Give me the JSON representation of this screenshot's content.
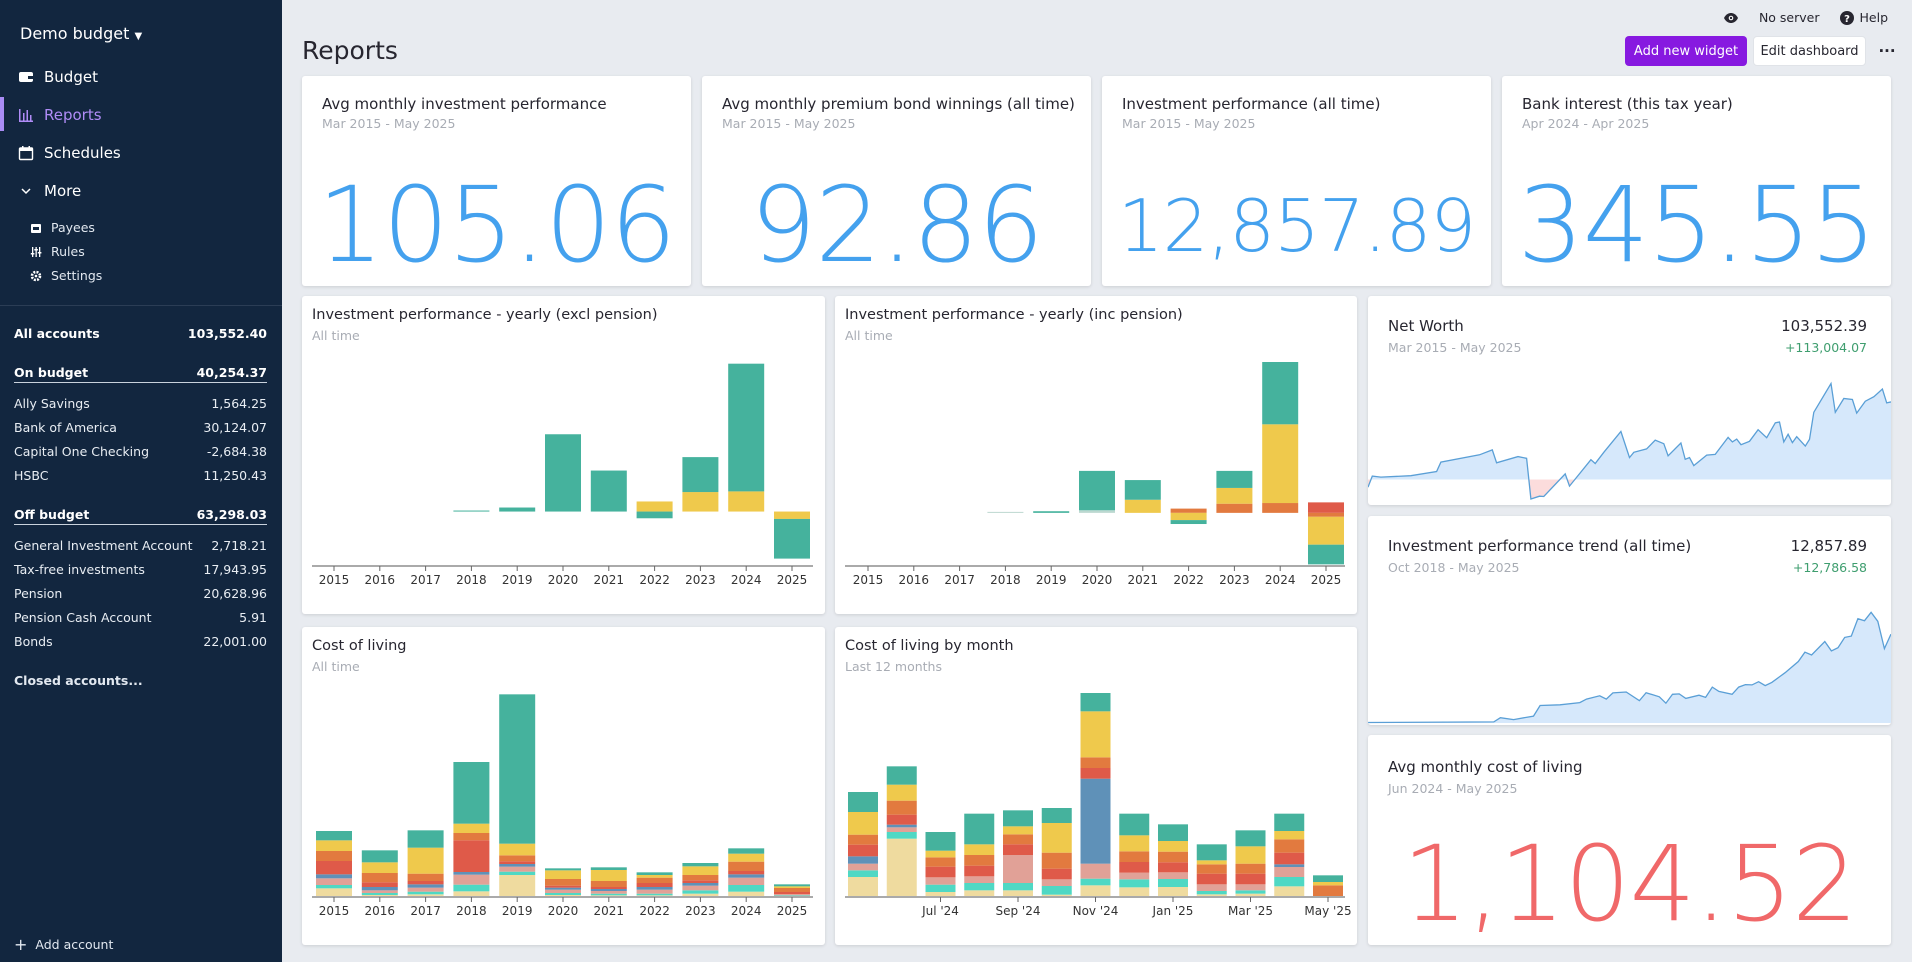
{
  "sidebar": {
    "budget_name": "Demo budget",
    "nav": [
      {
        "label": "Budget",
        "icon": "wallet-icon"
      },
      {
        "label": "Reports",
        "icon": "bar-chart-icon",
        "active": true
      },
      {
        "label": "Schedules",
        "icon": "calendar-icon"
      },
      {
        "label": "More",
        "icon": "chevron-down-icon"
      }
    ],
    "sub": [
      {
        "label": "Payees",
        "icon": "store-icon"
      },
      {
        "label": "Rules",
        "icon": "sliders-icon"
      },
      {
        "label": "Settings",
        "icon": "gear-icon"
      }
    ],
    "all_accounts": {
      "label": "All accounts",
      "value": "103,552.40"
    },
    "on_budget": {
      "label": "On budget",
      "value": "40,254.37",
      "accounts": [
        {
          "name": "Ally Savings",
          "value": "1,564.25"
        },
        {
          "name": "Bank of America",
          "value": "30,124.07"
        },
        {
          "name": "Capital One Checking",
          "value": "-2,684.38"
        },
        {
          "name": "HSBC",
          "value": "11,250.43"
        }
      ]
    },
    "off_budget": {
      "label": "Off budget",
      "value": "63,298.03",
      "accounts": [
        {
          "name": "General Investment Account",
          "value": "2,718.21"
        },
        {
          "name": "Tax-free investments",
          "value": "17,943.95"
        },
        {
          "name": "Pension",
          "value": "20,628.96"
        },
        {
          "name": "Pension Cash Account",
          "value": "5.91"
        },
        {
          "name": "Bonds",
          "value": "22,001.00"
        }
      ]
    },
    "closed": "Closed accounts...",
    "add_account": "Add account"
  },
  "header": {
    "title": "Reports",
    "server": "No server",
    "help": "Help",
    "add_widget": "Add new widget",
    "edit_dashboard": "Edit dashboard",
    "more": "···"
  },
  "colors": {
    "accent": "#8719e0",
    "number_blue": "#44a1ee",
    "number_red": "#f06869",
    "positive": "#3f9e6f",
    "teal": "#45b29d",
    "yellow": "#efc94c",
    "orange": "#e27a3f",
    "red": "#df5a49",
    "blue": "#5f91b8",
    "pink": "#e1a197",
    "mint": "#4fd8c4",
    "beige": "#efdb9f",
    "light": "#bcd8d0"
  },
  "cards": [
    {
      "title": "Avg monthly investment performance",
      "subtitle": "Mar 2015 - May 2025",
      "value": "105.06"
    },
    {
      "title": "Avg monthly premium bond winnings (all time)",
      "subtitle": "Mar 2015 - May 2025",
      "value": "92.86"
    },
    {
      "title": "Investment performance (all time)",
      "subtitle": "Mar 2015 - May 2025",
      "value": "12,857.89"
    },
    {
      "title": "Bank interest (this tax year)",
      "subtitle": "Apr 2024 - Apr 2025",
      "value": "345.55"
    },
    {
      "title": "Avg monthly cost of living",
      "subtitle": "Jun 2024 - May 2025",
      "value": "1,104.52"
    }
  ],
  "net_worth": {
    "title": "Net Worth",
    "subtitle": "Mar 2015 - May 2025",
    "value": "103,552.39",
    "change": "+113,004.07"
  },
  "inv_trend": {
    "title": "Investment performance trend (all time)",
    "subtitle": "Oct 2018 - May 2025",
    "value": "12,857.89",
    "change": "+12,786.58"
  },
  "chart_data": [
    {
      "id": "inv_excl",
      "type": "bar",
      "stacked": true,
      "title": "Investment performance - yearly (excl pension)",
      "subtitle": "All time",
      "categories": [
        "2015",
        "2016",
        "2017",
        "2018",
        "2019",
        "2020",
        "2021",
        "2022",
        "2023",
        "2024",
        "2025"
      ],
      "ylim": [
        -162,
        445
      ],
      "series": [
        {
          "color": "yellow",
          "values": [
            0,
            0,
            0,
            0,
            0,
            0,
            0,
            30,
            58,
            60,
            -22
          ]
        },
        {
          "color": "teal",
          "values": [
            0,
            0,
            0,
            3,
            12,
            230,
            122,
            -20,
            104,
            380,
            -118
          ]
        }
      ]
    },
    {
      "id": "inv_inc",
      "type": "bar",
      "stacked": true,
      "title": "Investment performance - yearly (inc pension)",
      "subtitle": "All time",
      "categories": [
        "2015",
        "2016",
        "2017",
        "2018",
        "2019",
        "2020",
        "2021",
        "2022",
        "2023",
        "2024",
        "2025"
      ],
      "ylim": [
        -162,
        460
      ],
      "series": [
        {
          "color": "red",
          "values": [
            0,
            0,
            0,
            0,
            0,
            0,
            0,
            0,
            0,
            0,
            32
          ]
        },
        {
          "color": "orange",
          "values": [
            0,
            0,
            0,
            0,
            0,
            0,
            0,
            13,
            28,
            30,
            -12
          ]
        },
        {
          "color": "light",
          "values": [
            0,
            0,
            0,
            3,
            0,
            8,
            0,
            0,
            0,
            0,
            0
          ]
        },
        {
          "color": "yellow",
          "values": [
            0,
            0,
            0,
            0,
            0,
            0,
            40,
            -22,
            48,
            240,
            -85
          ]
        },
        {
          "color": "teal",
          "values": [
            0,
            0,
            0,
            0,
            5,
            120,
            60,
            -12,
            52,
            190,
            -60
          ]
        }
      ]
    },
    {
      "id": "col",
      "type": "bar",
      "stacked": true,
      "title": "Cost of living",
      "subtitle": "All time",
      "categories": [
        "2015",
        "2016",
        "2017",
        "2018",
        "2019",
        "2020",
        "2021",
        "2022",
        "2023",
        "2024",
        "2025"
      ],
      "ylim": [
        0,
        612
      ],
      "series": [
        {
          "color": "beige",
          "values": [
            26,
            6,
            8,
            17,
            66,
            6,
            5,
            5,
            10,
            16,
            2
          ]
        },
        {
          "color": "mint",
          "values": [
            10,
            6,
            8,
            20,
            10,
            6,
            5,
            5,
            10,
            20,
            3
          ]
        },
        {
          "color": "pink",
          "values": [
            20,
            8,
            12,
            30,
            15,
            10,
            8,
            12,
            14,
            22,
            4
          ]
        },
        {
          "color": "blue",
          "values": [
            12,
            10,
            10,
            8,
            8,
            6,
            6,
            8,
            8,
            10,
            0
          ]
        },
        {
          "color": "red",
          "values": [
            40,
            14,
            10,
            95,
            8,
            6,
            6,
            12,
            8,
            10,
            6
          ]
        },
        {
          "color": "orange",
          "values": [
            30,
            28,
            22,
            22,
            18,
            20,
            18,
            16,
            16,
            28,
            12
          ]
        },
        {
          "color": "yellow",
          "values": [
            32,
            32,
            78,
            28,
            35,
            26,
            33,
            8,
            26,
            24,
            5
          ]
        },
        {
          "color": "teal",
          "values": [
            28,
            36,
            52,
            185,
            448,
            6,
            8,
            8,
            10,
            16,
            6
          ]
        }
      ]
    },
    {
      "id": "col_month",
      "type": "bar",
      "stacked": true,
      "title": "Cost of living by month",
      "subtitle": "Last 12 months",
      "categories": [
        "",
        "",
        "Jul '24",
        "",
        "Sep '24",
        "",
        "Nov '24",
        "",
        "Jan '25",
        "",
        "Mar '25",
        "",
        "May '25"
      ],
      "ylim": [
        0,
        612
      ],
      "series": [
        {
          "color": "beige",
          "values": [
            60,
            175,
            15,
            20,
            20,
            7,
            35,
            29,
            30,
            8,
            10,
            32,
            0
          ]
        },
        {
          "color": "mint",
          "values": [
            20,
            20,
            22,
            22,
            22,
            26,
            20,
            24,
            24,
            10,
            10,
            28,
            0
          ]
        },
        {
          "color": "pink",
          "values": [
            20,
            14,
            22,
            20,
            84,
            20,
            45,
            20,
            20,
            20,
            18,
            30,
            0
          ]
        },
        {
          "color": "blue",
          "values": [
            22,
            8,
            0,
            0,
            0,
            0,
            255,
            0,
            0,
            0,
            0,
            8,
            0
          ]
        },
        {
          "color": "red",
          "values": [
            35,
            30,
            32,
            32,
            32,
            32,
            32,
            32,
            30,
            32,
            32,
            35,
            0
          ]
        },
        {
          "color": "orange",
          "values": [
            30,
            42,
            28,
            32,
            30,
            48,
            32,
            32,
            32,
            28,
            30,
            40,
            35
          ]
        },
        {
          "color": "yellow",
          "values": [
            68,
            48,
            20,
            32,
            24,
            89,
            138,
            48,
            32,
            12,
            52,
            25,
            10
          ]
        },
        {
          "color": "teal",
          "values": [
            60,
            55,
            56,
            92,
            48,
            45,
            55,
            65,
            50,
            48,
            48,
            52,
            20
          ]
        }
      ]
    },
    {
      "id": "net_worth",
      "type": "area",
      "ylim": [
        -30000,
        130000
      ],
      "x_range": [
        "2015-03",
        "2025-05"
      ],
      "points": [
        [
          "2015-03",
          -10200
        ],
        [
          "2015-04",
          4600
        ],
        [
          "2015-06",
          3200
        ],
        [
          "2016-01",
          5100
        ],
        [
          "2016-07",
          10700
        ],
        [
          "2016-08",
          23200
        ],
        [
          "2017-05",
          32900
        ],
        [
          "2017-08",
          39400
        ],
        [
          "2017-09",
          22300
        ],
        [
          "2018-02",
          30600
        ],
        [
          "2018-04",
          28300
        ],
        [
          "2018-05",
          -26000
        ],
        [
          "2018-07",
          -22300
        ],
        [
          "2018-08",
          -22700
        ],
        [
          "2019-01",
          7400
        ],
        [
          "2019-02",
          -8800
        ],
        [
          "2019-07",
          26400
        ],
        [
          "2019-08",
          21300
        ],
        [
          "2019-10",
          36200
        ],
        [
          "2020-02",
          64000
        ],
        [
          "2020-04",
          29200
        ],
        [
          "2020-05",
          36200
        ],
        [
          "2020-08",
          40800
        ],
        [
          "2020-10",
          52400
        ],
        [
          "2020-12",
          47800
        ],
        [
          "2021-01",
          31600
        ],
        [
          "2021-04",
          48700
        ],
        [
          "2021-05",
          26900
        ],
        [
          "2021-06",
          29200
        ],
        [
          "2021-07",
          18600
        ],
        [
          "2021-10",
          32500
        ],
        [
          "2021-12",
          33400
        ],
        [
          "2022-03",
          56100
        ],
        [
          "2022-04",
          50100
        ],
        [
          "2022-05",
          53800
        ],
        [
          "2022-06",
          46400
        ],
        [
          "2022-08",
          51000
        ],
        [
          "2022-10",
          66400
        ],
        [
          "2022-12",
          55700
        ],
        [
          "2023-02",
          75600
        ],
        [
          "2023-03",
          76600
        ],
        [
          "2023-04",
          50100
        ],
        [
          "2023-05",
          60300
        ],
        [
          "2023-06",
          49200
        ],
        [
          "2023-07",
          57100
        ],
        [
          "2023-09",
          44500
        ],
        [
          "2023-10",
          53400
        ],
        [
          "2023-11",
          89600
        ],
        [
          "2024-03",
          128000
        ],
        [
          "2024-04",
          89600
        ],
        [
          "2024-06",
          108000
        ],
        [
          "2024-08",
          106700
        ],
        [
          "2024-09",
          88600
        ],
        [
          "2024-11",
          104400
        ],
        [
          "2025-01",
          110400
        ],
        [
          "2025-03",
          120600
        ],
        [
          "2025-04",
          102100
        ],
        [
          "2025-05",
          103500
        ]
      ]
    },
    {
      "id": "inv_trend",
      "type": "area",
      "ylim": [
        0,
        16500
      ],
      "x_range": [
        "2018-10",
        "2025-05"
      ],
      "points": [
        [
          "2018-10",
          70
        ],
        [
          "2020-05",
          160
        ],
        [
          "2020-06",
          770
        ],
        [
          "2020-08",
          490
        ],
        [
          "2020-11",
          1000
        ],
        [
          "2020-12",
          2530
        ],
        [
          "2021-03",
          2630
        ],
        [
          "2021-06",
          2950
        ],
        [
          "2021-07",
          3460
        ],
        [
          "2021-09",
          3930
        ],
        [
          "2021-10",
          3460
        ],
        [
          "2021-11",
          4350
        ],
        [
          "2022-01",
          4490
        ],
        [
          "2022-03",
          3230
        ],
        [
          "2022-04",
          4390
        ],
        [
          "2022-06",
          3790
        ],
        [
          "2022-07",
          2860
        ],
        [
          "2022-08",
          4160
        ],
        [
          "2022-09",
          4210
        ],
        [
          "2022-10",
          3560
        ],
        [
          "2022-12",
          4020
        ],
        [
          "2023-01",
          3700
        ],
        [
          "2023-02",
          5190
        ],
        [
          "2023-03",
          4580
        ],
        [
          "2023-05",
          4160
        ],
        [
          "2023-06",
          5190
        ],
        [
          "2023-07",
          5560
        ],
        [
          "2023-08",
          5510
        ],
        [
          "2023-09",
          5980
        ],
        [
          "2023-10",
          5420
        ],
        [
          "2023-11",
          5880
        ],
        [
          "2024-01",
          7280
        ],
        [
          "2024-03",
          8900
        ],
        [
          "2024-04",
          10250
        ],
        [
          "2024-05",
          9840
        ],
        [
          "2024-07",
          11790
        ],
        [
          "2024-08",
          10440
        ],
        [
          "2024-09",
          10900
        ],
        [
          "2024-10",
          12390
        ],
        [
          "2024-11",
          12580
        ],
        [
          "2024-12",
          15090
        ],
        [
          "2025-01",
          14810
        ],
        [
          "2025-02",
          16020
        ],
        [
          "2025-03",
          14720
        ],
        [
          "2025-04",
          10770
        ],
        [
          "2025-05",
          12860
        ]
      ]
    }
  ]
}
